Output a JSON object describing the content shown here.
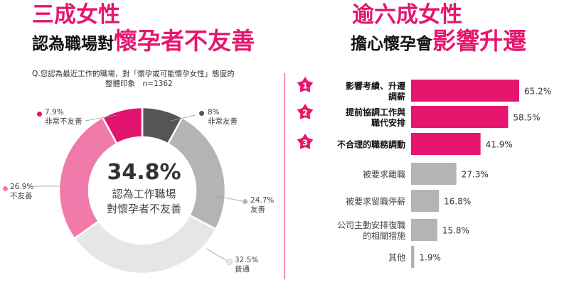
{
  "left": {
    "headline_1": "三成女性",
    "headline_2_plain": "認為職場對",
    "headline_2_accent": "懷孕者不友善",
    "question_line_1": "Q.您認為最近工作的職場，對「懷孕或可能懷孕女性」態度的",
    "question_line_2": "整體印象　n=1362",
    "center_value": "34.8%",
    "center_label_1": "認為工作職場",
    "center_label_2": "對懷孕者不友善"
  },
  "right": {
    "headline_1": "逾六成女性",
    "headline_2_plain": "擔心懷孕會",
    "headline_2_accent": "影響升遷"
  },
  "colors": {
    "accent": "#e6166f",
    "very_unfriendly": "#e2136e",
    "unfriendly": "#f07aaa",
    "very_friendly": "#555555",
    "friendly": "#b4b4b4",
    "normal": "#e6e6e6",
    "bar_highlight": "#e6166f",
    "bar_normal": "#b4b4b4"
  },
  "chart_data": [
    {
      "type": "pie",
      "subtype": "donut",
      "slices": [
        {
          "label": "非常友善",
          "value": 8.0,
          "value_text": "8%",
          "color": "#555555"
        },
        {
          "label": "友善",
          "value": 24.7,
          "value_text": "24.7%",
          "color": "#b4b4b4"
        },
        {
          "label": "普通",
          "value": 32.5,
          "value_text": "32.5%",
          "color": "#e6e6e6"
        },
        {
          "label": "不友善",
          "value": 26.9,
          "value_text": "26.9%",
          "color": "#f07aaa"
        },
        {
          "label": "非常不友善",
          "value": 7.9,
          "value_text": "7.9%",
          "color": "#e2136e"
        }
      ]
    },
    {
      "type": "bar",
      "orientation": "horizontal",
      "categories": [
        [
          "影響考績、升遷",
          "調薪"
        ],
        [
          "提前協調工作與",
          "職代安排"
        ],
        [
          "不合理的職務調動"
        ],
        [
          "被要求離職"
        ],
        [
          "被要求留職停薪"
        ],
        [
          "公司主動安排復職",
          "的相關措施"
        ],
        [
          "其他"
        ]
      ],
      "values": [
        65.2,
        58.5,
        41.9,
        27.3,
        16.8,
        15.8,
        1.9
      ],
      "value_labels": [
        "65.2%",
        "58.5%",
        "41.9%",
        "27.3%",
        "16.8%",
        "15.8%",
        "1.9%"
      ],
      "rank_badges": [
        "1",
        "2",
        "3"
      ],
      "highlighted_count": 3
    }
  ]
}
